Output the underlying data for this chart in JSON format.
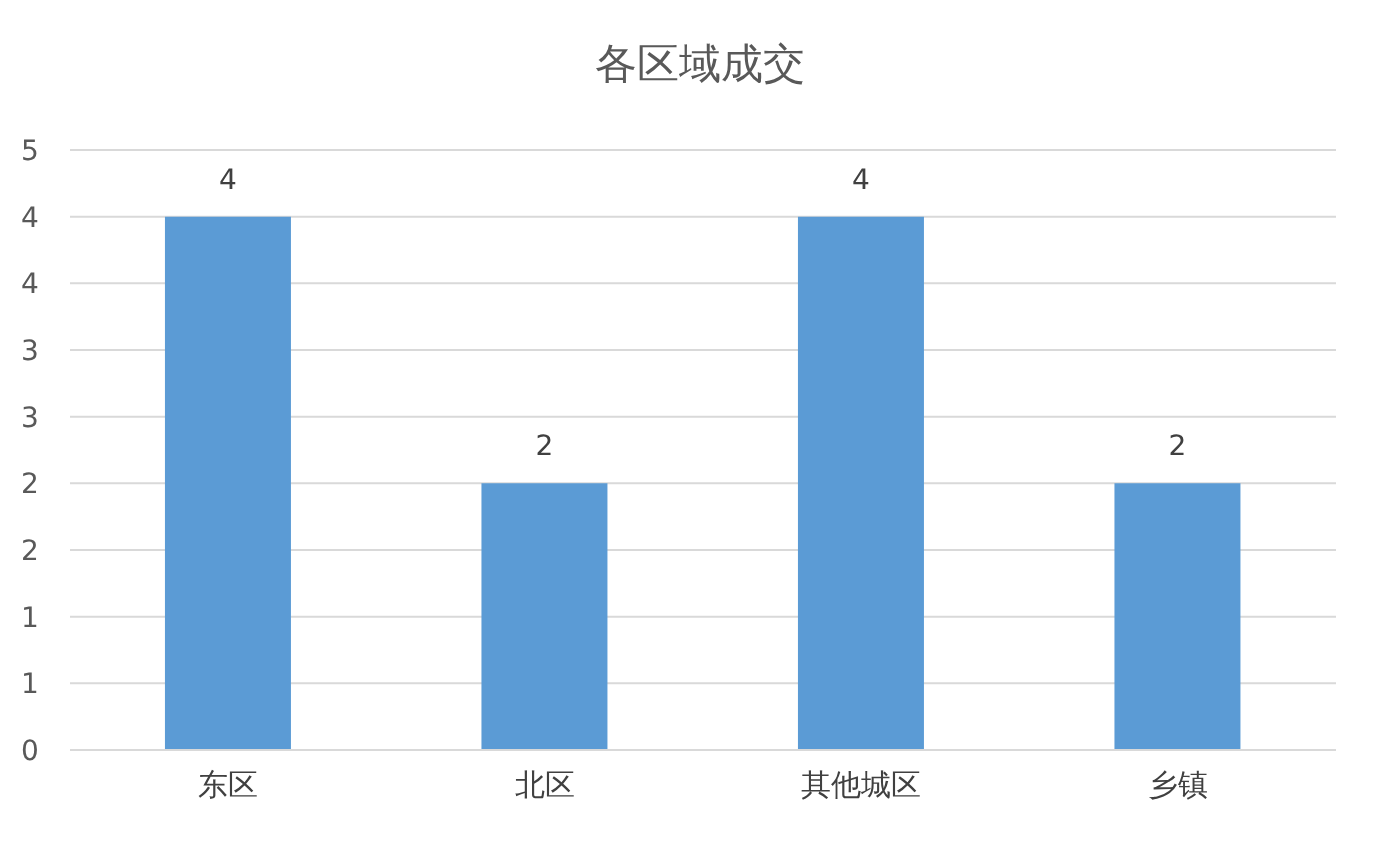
{
  "chart_data": {
    "type": "bar",
    "title": "各区域成交",
    "categories": [
      "东区",
      "北区",
      "其他城区",
      "乡镇"
    ],
    "values": [
      4,
      2,
      4,
      2
    ],
    "color": "#5b9bd5",
    "ylim": [
      0,
      4.5
    ],
    "yticks": [
      0,
      {
        "value": 0.5,
        "label": "1"
      },
      1,
      {
        "value": 1.5,
        "label": "2"
      },
      2,
      {
        "value": 2.5,
        "label": "3"
      },
      3,
      {
        "value": 3.5,
        "label": "4"
      },
      4,
      {
        "value": 4.5,
        "label": "5"
      }
    ],
    "grid": "y",
    "data_labels": true
  }
}
